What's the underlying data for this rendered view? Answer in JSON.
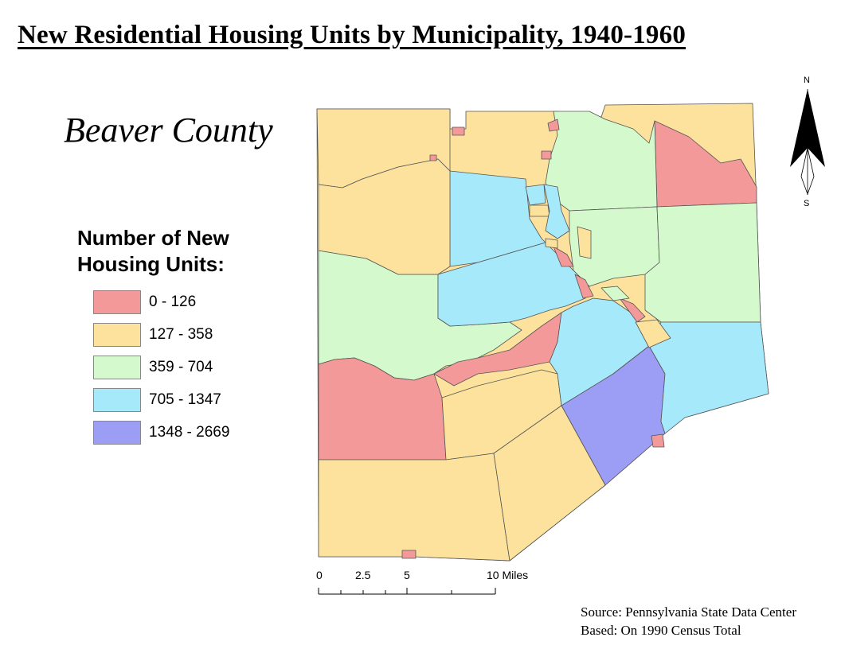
{
  "title": "New Residential Housing Units by Municipality, 1940-1960",
  "county": "Beaver County",
  "legend": {
    "title": "Number of New Housing Units:",
    "items": [
      {
        "label": "0 - 126",
        "color": "#f4999a"
      },
      {
        "label": "127 - 358",
        "color": "#fce29c"
      },
      {
        "label": "359 - 704",
        "color": "#d3f9cc"
      },
      {
        "label": "705 - 1347",
        "color": "#a6e9fb"
      },
      {
        "label": "1348 - 2669",
        "color": "#9b9ef4"
      }
    ]
  },
  "scale_bar": {
    "ticks": [
      "0",
      "2.5",
      "5"
    ],
    "end_label": "10 Miles"
  },
  "north_arrow": {
    "top": "N",
    "bottom": "S",
    "icon": "north-arrow-icon"
  },
  "source": {
    "line1": "Source: Pennsylvania State Data Center",
    "line2": "Based: On 1990 Census Total"
  }
}
